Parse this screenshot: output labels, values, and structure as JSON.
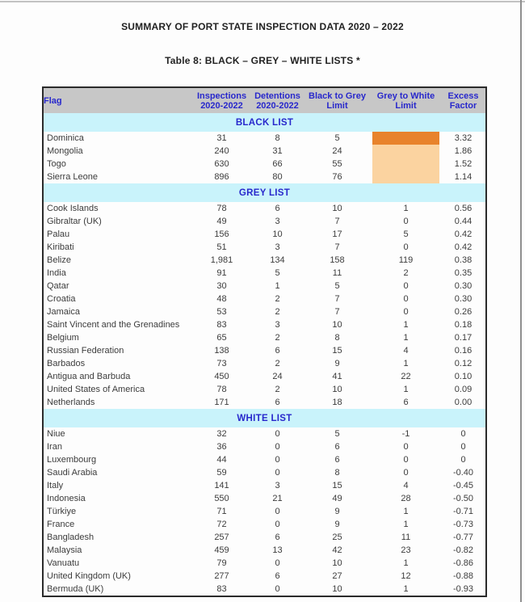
{
  "page": {
    "title": "SUMMARY OF PORT STATE INSPECTION DATA 2020 – 2022",
    "subtitle": "Table 8: BLACK – GREY – WHITE LISTS *"
  },
  "colors": {
    "header_bg_grey": "#c7c7c7",
    "section_bg_cyan": "#c9f3fb",
    "header_text_blue": "#2828cc",
    "highlight_dark_orange": "#e8832c",
    "highlight_light_orange": "#fbd3a0"
  },
  "table": {
    "headers": [
      {
        "line1": "Flag",
        "line2": ""
      },
      {
        "line1": "Inspections",
        "line2": "2020-2022"
      },
      {
        "line1": "Detentions",
        "line2": "2020-2022"
      },
      {
        "line1": "Black to Grey",
        "line2": "Limit"
      },
      {
        "line1": "Grey to White",
        "line2": "Limit"
      },
      {
        "line1": "Excess",
        "line2": "Factor"
      }
    ],
    "sections": [
      {
        "name": "BLACK LIST",
        "rows": [
          {
            "flag": "Dominica",
            "inspections": "31",
            "detentions": "8",
            "black_to_grey": "5",
            "grey_to_white": "",
            "excess": "3.32",
            "highlight": "dark"
          },
          {
            "flag": "Mongolia",
            "inspections": "240",
            "detentions": "31",
            "black_to_grey": "24",
            "grey_to_white": "",
            "excess": "1.86",
            "highlight": "light"
          },
          {
            "flag": "Togo",
            "inspections": "630",
            "detentions": "66",
            "black_to_grey": "55",
            "grey_to_white": "",
            "excess": "1.52",
            "highlight": "light"
          },
          {
            "flag": "Sierra Leone",
            "inspections": "896",
            "detentions": "80",
            "black_to_grey": "76",
            "grey_to_white": "",
            "excess": "1.14",
            "highlight": "light"
          }
        ]
      },
      {
        "name": "GREY LIST",
        "rows": [
          {
            "flag": "Cook Islands",
            "inspections": "78",
            "detentions": "6",
            "black_to_grey": "10",
            "grey_to_white": "1",
            "excess": "0.56"
          },
          {
            "flag": "Gibraltar (UK)",
            "inspections": "49",
            "detentions": "3",
            "black_to_grey": "7",
            "grey_to_white": "0",
            "excess": "0.44"
          },
          {
            "flag": "Palau",
            "inspections": "156",
            "detentions": "10",
            "black_to_grey": "17",
            "grey_to_white": "5",
            "excess": "0.42"
          },
          {
            "flag": "Kiribati",
            "inspections": "51",
            "detentions": "3",
            "black_to_grey": "7",
            "grey_to_white": "0",
            "excess": "0.42"
          },
          {
            "flag": "Belize",
            "inspections": "1,981",
            "detentions": "134",
            "black_to_grey": "158",
            "grey_to_white": "119",
            "excess": "0.38"
          },
          {
            "flag": "India",
            "inspections": "91",
            "detentions": "5",
            "black_to_grey": "11",
            "grey_to_white": "2",
            "excess": "0.35"
          },
          {
            "flag": "Qatar",
            "inspections": "30",
            "detentions": "1",
            "black_to_grey": "5",
            "grey_to_white": "0",
            "excess": "0.30"
          },
          {
            "flag": "Croatia",
            "inspections": "48",
            "detentions": "2",
            "black_to_grey": "7",
            "grey_to_white": "0",
            "excess": "0.30"
          },
          {
            "flag": "Jamaica",
            "inspections": "53",
            "detentions": "2",
            "black_to_grey": "7",
            "grey_to_white": "0",
            "excess": "0.26"
          },
          {
            "flag": "Saint Vincent and the Grenadines",
            "inspections": "83",
            "detentions": "3",
            "black_to_grey": "10",
            "grey_to_white": "1",
            "excess": "0.18"
          },
          {
            "flag": "Belgium",
            "inspections": "65",
            "detentions": "2",
            "black_to_grey": "8",
            "grey_to_white": "1",
            "excess": "0.17"
          },
          {
            "flag": "Russian Federation",
            "inspections": "138",
            "detentions": "6",
            "black_to_grey": "15",
            "grey_to_white": "4",
            "excess": "0.16"
          },
          {
            "flag": "Barbados",
            "inspections": "73",
            "detentions": "2",
            "black_to_grey": "9",
            "grey_to_white": "1",
            "excess": "0.12"
          },
          {
            "flag": "Antigua and Barbuda",
            "inspections": "450",
            "detentions": "24",
            "black_to_grey": "41",
            "grey_to_white": "22",
            "excess": "0.10"
          },
          {
            "flag": "United States of America",
            "inspections": "78",
            "detentions": "2",
            "black_to_grey": "10",
            "grey_to_white": "1",
            "excess": "0.09"
          },
          {
            "flag": "Netherlands",
            "inspections": "171",
            "detentions": "6",
            "black_to_grey": "18",
            "grey_to_white": "6",
            "excess": "0.00"
          }
        ]
      },
      {
        "name": "WHITE LIST",
        "rows": [
          {
            "flag": "Niue",
            "inspections": "32",
            "detentions": "0",
            "black_to_grey": "5",
            "grey_to_white": "-1",
            "excess": "0"
          },
          {
            "flag": "Iran",
            "inspections": "36",
            "detentions": "0",
            "black_to_grey": "6",
            "grey_to_white": "0",
            "excess": "0"
          },
          {
            "flag": "Luxembourg",
            "inspections": "44",
            "detentions": "0",
            "black_to_grey": "6",
            "grey_to_white": "0",
            "excess": "0"
          },
          {
            "flag": "Saudi Arabia",
            "inspections": "59",
            "detentions": "0",
            "black_to_grey": "8",
            "grey_to_white": "0",
            "excess": "-0.40"
          },
          {
            "flag": "Italy",
            "inspections": "141",
            "detentions": "3",
            "black_to_grey": "15",
            "grey_to_white": "4",
            "excess": "-0.45"
          },
          {
            "flag": "Indonesia",
            "inspections": "550",
            "detentions": "21",
            "black_to_grey": "49",
            "grey_to_white": "28",
            "excess": "-0.50"
          },
          {
            "flag": "Türkiye",
            "inspections": "71",
            "detentions": "0",
            "black_to_grey": "9",
            "grey_to_white": "1",
            "excess": "-0.71"
          },
          {
            "flag": "France",
            "inspections": "72",
            "detentions": "0",
            "black_to_grey": "9",
            "grey_to_white": "1",
            "excess": "-0.73"
          },
          {
            "flag": "Bangladesh",
            "inspections": "257",
            "detentions": "6",
            "black_to_grey": "25",
            "grey_to_white": "11",
            "excess": "-0.77"
          },
          {
            "flag": "Malaysia",
            "inspections": "459",
            "detentions": "13",
            "black_to_grey": "42",
            "grey_to_white": "23",
            "excess": "-0.82"
          },
          {
            "flag": "Vanuatu",
            "inspections": "79",
            "detentions": "0",
            "black_to_grey": "10",
            "grey_to_white": "1",
            "excess": "-0.86"
          },
          {
            "flag": "United Kingdom (UK)",
            "inspections": "277",
            "detentions": "6",
            "black_to_grey": "27",
            "grey_to_white": "12",
            "excess": "-0.88"
          },
          {
            "flag": "Bermuda (UK)",
            "inspections": "83",
            "detentions": "0",
            "black_to_grey": "10",
            "grey_to_white": "1",
            "excess": "-0.93"
          }
        ]
      }
    ]
  }
}
